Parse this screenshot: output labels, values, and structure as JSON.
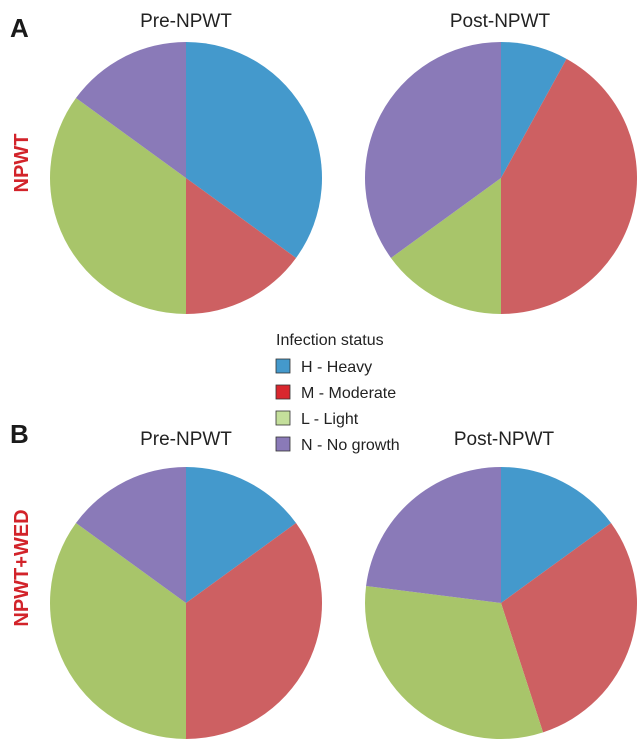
{
  "panels": [
    {
      "letter": "A",
      "row_label": "NPWT"
    },
    {
      "letter": "B",
      "row_label": "NPWT+WED"
    }
  ],
  "legend": {
    "title": "Infection status",
    "items": [
      {
        "label": "H - Heavy",
        "color": "#4499cc"
      },
      {
        "label": "M - Moderate",
        "color": "#d9272e"
      },
      {
        "label": "L - Light",
        "color": "#c4df9b"
      },
      {
        "label": "N - No growth",
        "color": "#8a7ab8"
      }
    ]
  },
  "chart_data": [
    {
      "type": "pie",
      "title": "Pre-NPWT",
      "categories": [
        "H - Heavy",
        "M - Moderate",
        "L - Light",
        "N - No growth"
      ],
      "values": [
        35,
        15,
        35,
        15
      ],
      "colors": [
        "#4499cc",
        "#cd6062",
        "#a8c56a",
        "#8a7ab8"
      ]
    },
    {
      "type": "pie",
      "title": "Post-NPWT",
      "categories": [
        "H - Heavy",
        "M - Moderate",
        "L - Light",
        "N - No growth"
      ],
      "values": [
        8,
        42,
        15,
        35
      ],
      "colors": [
        "#4499cc",
        "#cd6062",
        "#a8c56a",
        "#8a7ab8"
      ]
    },
    {
      "type": "pie",
      "title": "Pre-NPWT",
      "categories": [
        "H - Heavy",
        "M - Moderate",
        "L - Light",
        "N - No growth"
      ],
      "values": [
        15,
        35,
        35,
        15
      ],
      "colors": [
        "#4499cc",
        "#cd6062",
        "#a8c56a",
        "#8a7ab8"
      ]
    },
    {
      "type": "pie",
      "title": "Post-NPWT",
      "categories": [
        "H - Heavy",
        "M - Moderate",
        "L - Light",
        "N - No growth"
      ],
      "values": [
        15,
        30,
        32,
        23
      ],
      "colors": [
        "#4499cc",
        "#cd6062",
        "#a8c56a",
        "#8a7ab8"
      ]
    }
  ]
}
